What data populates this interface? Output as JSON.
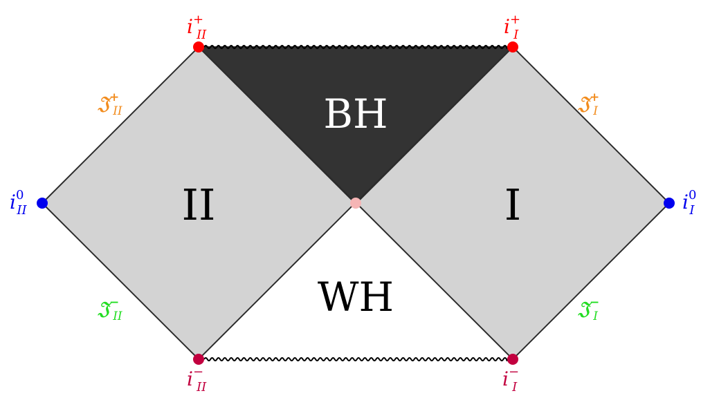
{
  "regions": {
    "bh": "BH",
    "wh": "WH",
    "ext_left": "II",
    "ext_right": "I"
  },
  "points": {
    "i_plus_II": {
      "base": "i",
      "sup": "+",
      "sub": "II",
      "color": "#ff0000"
    },
    "i_plus_I": {
      "base": "i",
      "sup": "+",
      "sub": "I",
      "color": "#ff0000"
    },
    "i_zero_II": {
      "base": "i",
      "sup": "0",
      "sub": "II",
      "color": "#0000ee"
    },
    "i_zero_I": {
      "base": "i",
      "sup": "0",
      "sub": "I",
      "color": "#0000ee"
    },
    "i_minus_II": {
      "base": "i",
      "sup": "−",
      "sub": "II",
      "color": "#c2003f"
    },
    "i_minus_I": {
      "base": "i",
      "sup": "−",
      "sub": "I",
      "color": "#c2003f"
    }
  },
  "scri": {
    "plus_II": {
      "base": "𝔍",
      "sup": "+",
      "sub": "II",
      "color": "#f28c1e"
    },
    "plus_I": {
      "base": "𝔍",
      "sup": "+",
      "sub": "I",
      "color": "#f28c1e"
    },
    "minus_II": {
      "base": "𝔍",
      "sup": "−",
      "sub": "II",
      "color": "#22dd22"
    },
    "minus_I": {
      "base": "𝔍",
      "sup": "−",
      "sub": "I",
      "color": "#22dd22"
    }
  },
  "colors": {
    "exterior_fill": "#d3d3d3",
    "bh_fill": "#333333",
    "line": "#2b2b2b",
    "bifurcation_point": "#f5b5b5",
    "singularity": "#000000"
  }
}
